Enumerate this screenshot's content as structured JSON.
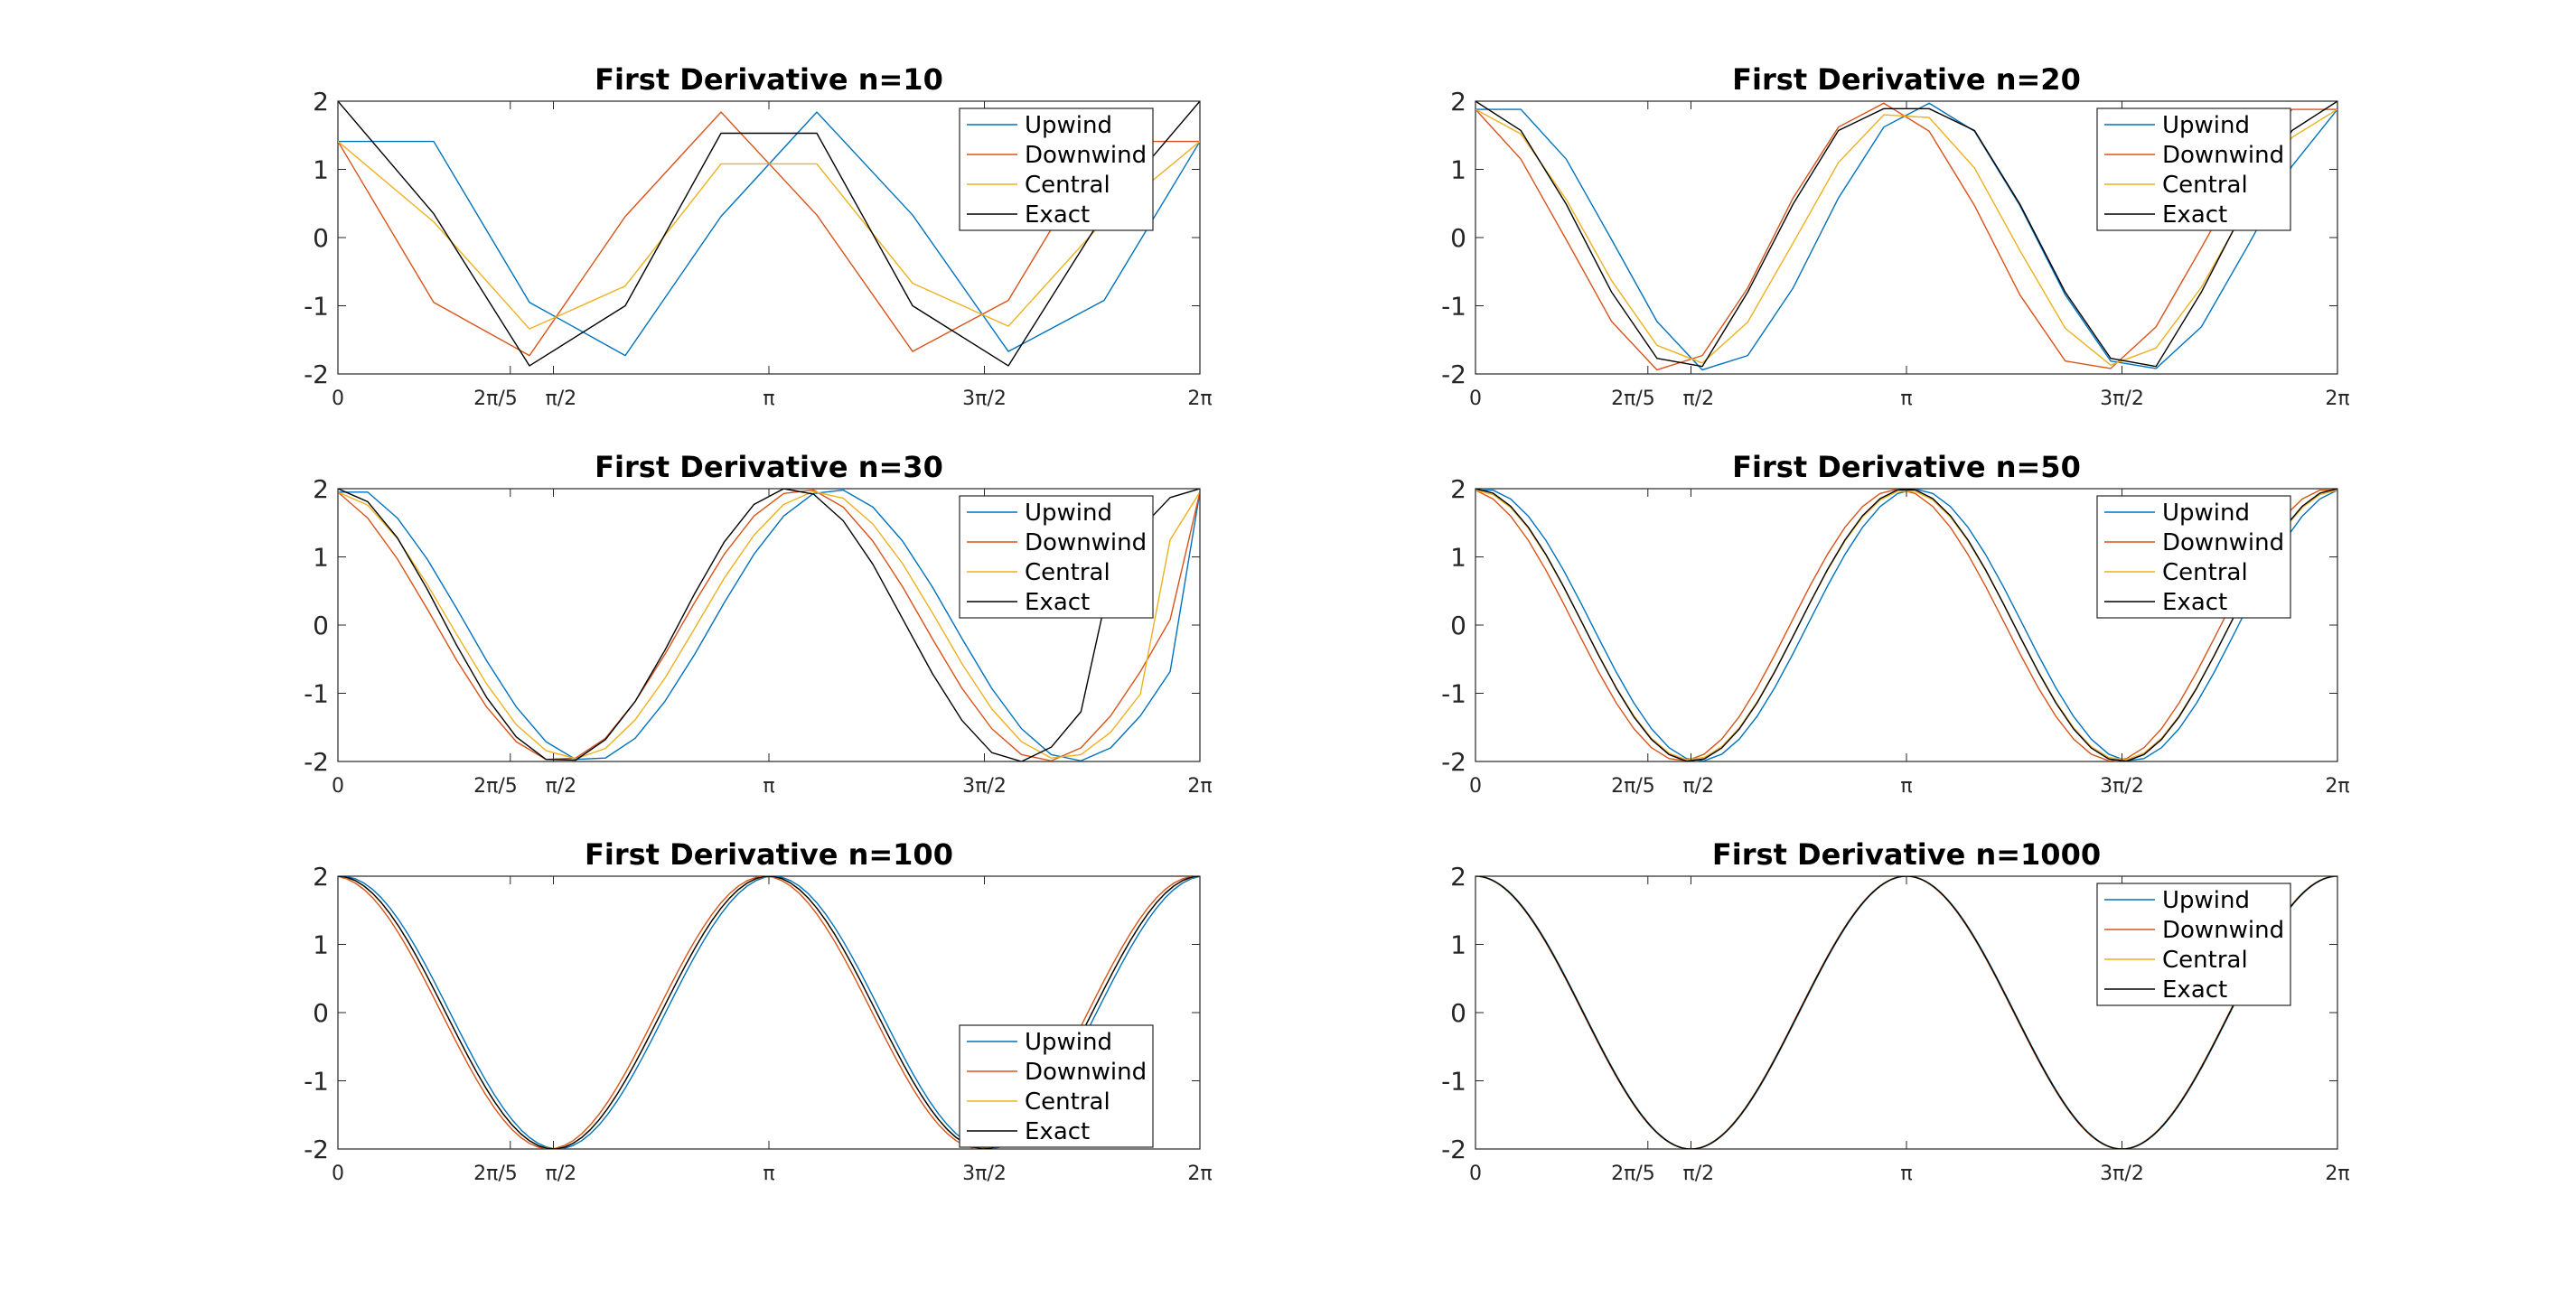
{
  "figure": {
    "background": "#ffffff",
    "axis_color": "#262626"
  },
  "chart_data": [
    {
      "type": "line",
      "title": "First Derivative n=10",
      "n": 10,
      "xlabel": "",
      "ylabel": "",
      "xlim": [
        0,
        6.2832
      ],
      "ylim": [
        -2,
        2
      ],
      "xticks": [
        0,
        1.2566,
        1.5708,
        3.1416,
        4.7124,
        6.2832
      ],
      "xticklabels": [
        "0",
        "2π/5",
        "π/2",
        "π",
        "3π/2",
        "2π"
      ],
      "yticks": [
        -2,
        -1,
        0,
        1,
        2
      ],
      "yticklabels": [
        "-2",
        "-1",
        "0",
        "1",
        "2"
      ],
      "legend": {
        "position": "top-right",
        "entries": [
          "Upwind",
          "Downwind",
          "Central",
          "Exact"
        ]
      },
      "series": [
        {
          "name": "Upwind",
          "color": "#0072BD",
          "x": [
            0,
            0.6981,
            1.3963,
            2.0944,
            2.7925,
            3.4907,
            4.1888,
            4.8869,
            5.5851,
            6.2832
          ],
          "y": [
            1.41,
            1.41,
            -0.95,
            -1.73,
            0.31,
            1.84,
            0.33,
            -1.67,
            -0.92,
            1.41
          ]
        },
        {
          "name": "Downwind",
          "color": "#D95319",
          "x": [
            0,
            0.6981,
            1.3963,
            2.0944,
            2.7925,
            3.4907,
            4.1888,
            4.8869,
            5.5851,
            6.2832
          ],
          "y": [
            1.41,
            -0.95,
            -1.73,
            0.31,
            1.84,
            0.33,
            -1.67,
            -0.92,
            1.41,
            1.41
          ]
        },
        {
          "name": "Central",
          "color": "#EDB120",
          "x": [
            0,
            0.6981,
            1.3963,
            2.0944,
            2.7925,
            3.4907,
            4.1888,
            4.8869,
            5.5851,
            6.2832
          ],
          "y": [
            1.41,
            0.23,
            -1.34,
            -0.71,
            1.08,
            1.08,
            -0.67,
            -1.3,
            0.25,
            1.41
          ]
        },
        {
          "name": "Exact",
          "color": "#000000",
          "x": [
            0,
            0.6981,
            1.3963,
            2.0944,
            2.7925,
            3.4907,
            4.1888,
            4.8869,
            5.5851,
            6.2832
          ],
          "y": [
            2.0,
            0.35,
            -1.88,
            -1.0,
            1.53,
            1.53,
            -1.0,
            -1.88,
            0.35,
            2.0
          ]
        }
      ]
    },
    {
      "type": "line",
      "title": "First Derivative n=20",
      "n": 20,
      "xlabel": "",
      "ylabel": "",
      "xlim": [
        0,
        6.2832
      ],
      "ylim": [
        -2,
        2
      ],
      "xticks": [
        0,
        1.2566,
        1.5708,
        3.1416,
        4.7124,
        6.2832
      ],
      "xticklabels": [
        "0",
        "2π/5",
        "π/2",
        "π",
        "3π/2",
        "2π"
      ],
      "yticks": [
        -2,
        -1,
        0,
        1,
        2
      ],
      "yticklabels": [
        "-2",
        "-1",
        "0",
        "1",
        "2"
      ],
      "legend": {
        "position": "top-right",
        "entries": [
          "Upwind",
          "Downwind",
          "Central",
          "Exact"
        ]
      },
      "series": [
        {
          "name": "Upwind",
          "color": "#0072BD",
          "x": [
            0,
            0.3307,
            0.6614,
            0.9921,
            1.3228,
            1.6535,
            1.9842,
            2.3149,
            2.6456,
            2.9762,
            3.3069,
            3.6376,
            3.9683,
            4.299,
            4.6297,
            4.9604,
            5.2911,
            5.6218,
            5.9525,
            6.2832
          ],
          "y": [
            1.88,
            1.88,
            1.15,
            -0.03,
            -1.23,
            -1.94,
            -1.73,
            -0.74,
            0.58,
            1.62,
            1.97,
            1.56,
            0.47,
            -0.84,
            -1.81,
            -1.92,
            -1.31,
            -0.15,
            1.05,
            1.88
          ]
        },
        {
          "name": "Downwind",
          "color": "#D95319",
          "x": [
            0,
            0.3307,
            0.6614,
            0.9921,
            1.3228,
            1.6535,
            1.9842,
            2.3149,
            2.6456,
            2.9762,
            3.3069,
            3.6376,
            3.9683,
            4.299,
            4.6297,
            4.9604,
            5.2911,
            5.6218,
            5.9525,
            6.2832
          ],
          "y": [
            1.88,
            1.15,
            -0.03,
            -1.23,
            -1.94,
            -1.73,
            -0.74,
            0.58,
            1.62,
            1.97,
            1.56,
            0.47,
            -0.84,
            -1.81,
            -1.92,
            -1.31,
            -0.15,
            1.05,
            1.88,
            1.88
          ]
        },
        {
          "name": "Central",
          "color": "#EDB120",
          "x": [
            0,
            0.3307,
            0.6614,
            0.9921,
            1.3228,
            1.6535,
            1.9842,
            2.3149,
            2.6456,
            2.9762,
            3.3069,
            3.6376,
            3.9683,
            4.299,
            4.6297,
            4.9604,
            5.2911,
            5.6218,
            5.9525,
            6.2832
          ],
          "y": [
            1.88,
            1.52,
            0.56,
            -0.63,
            -1.58,
            -1.84,
            -1.24,
            -0.08,
            1.1,
            1.8,
            1.76,
            1.02,
            -0.19,
            -1.33,
            -1.87,
            -1.62,
            -0.73,
            0.45,
            1.47,
            1.88
          ]
        },
        {
          "name": "Exact",
          "color": "#000000",
          "x": [
            0,
            0.3307,
            0.6614,
            0.9921,
            1.3228,
            1.6535,
            1.9842,
            2.3149,
            2.6456,
            2.9762,
            3.3069,
            3.6376,
            3.9683,
            4.299,
            4.6297,
            4.9604,
            5.2911,
            5.6218,
            5.9525,
            6.2832
          ],
          "y": [
            2.0,
            1.57,
            0.49,
            -0.8,
            -1.77,
            -1.89,
            -0.8,
            0.49,
            1.57,
            1.89,
            1.89,
            1.57,
            0.49,
            -0.8,
            -1.77,
            -1.89,
            -0.8,
            0.49,
            1.57,
            2.0
          ]
        }
      ]
    },
    {
      "type": "line",
      "title": "First Derivative n=30",
      "n": 30,
      "xlabel": "",
      "ylabel": "",
      "xlim": [
        0,
        6.2832
      ],
      "ylim": [
        -2,
        2
      ],
      "xticks": [
        0,
        1.2566,
        1.5708,
        3.1416,
        4.7124,
        6.2832
      ],
      "xticklabels": [
        "0",
        "2π/5",
        "π/2",
        "π",
        "3π/2",
        "2π"
      ],
      "yticks": [
        -2,
        -1,
        0,
        1,
        2
      ],
      "yticklabels": [
        "-2",
        "-1",
        "0",
        "1",
        "2"
      ],
      "legend": {
        "position": "top-right",
        "entries": [
          "Upwind",
          "Downwind",
          "Central",
          "Exact"
        ]
      },
      "series": [
        {
          "name": "Upwind",
          "color": "#0072BD",
          "x": [
            0,
            0.2167,
            0.4333,
            0.65,
            0.8666,
            1.0833,
            1.2999,
            1.5166,
            1.7332,
            1.9499,
            2.1666,
            2.3832,
            2.5999,
            2.8165,
            3.0332,
            3.2498,
            3.4665,
            3.6832,
            3.8998,
            4.1165,
            4.3331,
            4.5498,
            4.7664,
            4.9831,
            5.1998,
            5.4164,
            5.6331,
            5.8497,
            6.0664,
            6.2832
          ],
          "y": [
            1.95,
            1.95,
            1.57,
            0.97,
            0.24,
            -0.52,
            -1.2,
            -1.71,
            -1.97,
            -1.95,
            -1.66,
            -1.12,
            -0.43,
            0.33,
            1.04,
            1.6,
            1.93,
            1.98,
            1.73,
            1.23,
            0.56,
            -0.2,
            -0.93,
            -1.52,
            -1.9,
            -1.99,
            -1.8,
            -1.33,
            -0.68,
            1.95
          ]
        },
        {
          "name": "Downwind",
          "color": "#D95319",
          "x": [
            0,
            0.2167,
            0.4333,
            0.65,
            0.8666,
            1.0833,
            1.2999,
            1.5166,
            1.7332,
            1.9499,
            2.1666,
            2.3832,
            2.5999,
            2.8165,
            3.0332,
            3.2498,
            3.4665,
            3.6832,
            3.8998,
            4.1165,
            4.3331,
            4.5498,
            4.7664,
            4.9831,
            5.1998,
            5.4164,
            5.6331,
            5.8497,
            6.0664,
            6.2832
          ],
          "y": [
            1.95,
            1.57,
            0.97,
            0.24,
            -0.52,
            -1.2,
            -1.71,
            -1.97,
            -1.95,
            -1.66,
            -1.12,
            -0.43,
            0.33,
            1.04,
            1.6,
            1.93,
            1.98,
            1.73,
            1.23,
            0.56,
            -0.2,
            -0.93,
            -1.52,
            -1.9,
            -1.99,
            -1.8,
            -1.33,
            -0.68,
            0.08,
            1.95
          ]
        },
        {
          "name": "Central",
          "color": "#EDB120",
          "x": [
            0,
            0.2167,
            0.4333,
            0.65,
            0.8666,
            1.0833,
            1.2999,
            1.5166,
            1.7332,
            1.9499,
            2.1666,
            2.3832,
            2.5999,
            2.8165,
            3.0332,
            3.2498,
            3.4665,
            3.6832,
            3.8998,
            4.1165,
            4.3331,
            4.5498,
            4.7664,
            4.9831,
            5.1998,
            5.4164,
            5.6331,
            5.8497,
            6.0664,
            6.2832
          ],
          "y": [
            1.95,
            1.76,
            1.27,
            0.6,
            -0.14,
            -0.86,
            -1.46,
            -1.84,
            -1.96,
            -1.81,
            -1.39,
            -0.78,
            -0.05,
            0.69,
            1.32,
            1.77,
            1.96,
            1.86,
            1.48,
            0.9,
            0.18,
            -0.57,
            -1.23,
            -1.71,
            -1.95,
            -1.9,
            -1.57,
            -1.01,
            1.25,
            1.95
          ]
        },
        {
          "name": "Exact",
          "color": "#000000",
          "x": [
            0,
            0.2167,
            0.4333,
            0.65,
            0.8666,
            1.0833,
            1.2999,
            1.5166,
            1.7332,
            1.9499,
            2.1666,
            2.3832,
            2.5999,
            2.8165,
            3.0332,
            3.2498,
            3.4665,
            3.6832,
            3.8998,
            4.1165,
            4.3331,
            4.5498,
            4.7664,
            4.9831,
            5.1998,
            5.4164,
            5.6331,
            5.8497,
            6.0664,
            6.2832
          ],
          "y": [
            2.0,
            1.81,
            1.28,
            0.53,
            -0.3,
            -1.06,
            -1.64,
            -1.97,
            -1.98,
            -1.68,
            -1.12,
            -0.37,
            0.46,
            1.22,
            1.77,
            2.0,
            1.92,
            1.53,
            0.89,
            0.09,
            -0.71,
            -1.4,
            -1.87,
            -2.0,
            -1.79,
            -1.27,
            0.71,
            1.41,
            1.87,
            2.0
          ]
        }
      ]
    },
    {
      "type": "line",
      "title": "First Derivative n=50",
      "n": 50,
      "xlabel": "",
      "ylabel": "",
      "xlim": [
        0,
        6.2832
      ],
      "ylim": [
        -2,
        2
      ],
      "xticks": [
        0,
        1.2566,
        1.5708,
        3.1416,
        4.7124,
        6.2832
      ],
      "xticklabels": [
        "0",
        "2π/5",
        "π/2",
        "π",
        "3π/2",
        "2π"
      ],
      "yticks": [
        -2,
        -1,
        0,
        1,
        2
      ],
      "yticklabels": [
        "-2",
        "-1",
        "0",
        "1",
        "2"
      ],
      "legend": {
        "position": "top-right",
        "entries": [
          "Upwind",
          "Downwind",
          "Central",
          "Exact"
        ]
      },
      "generator": {
        "kind": "finite-difference",
        "function": "2cos(2x)",
        "points": 50
      },
      "series": [
        {
          "name": "Upwind",
          "color": "#0072BD"
        },
        {
          "name": "Downwind",
          "color": "#D95319"
        },
        {
          "name": "Central",
          "color": "#EDB120"
        },
        {
          "name": "Exact",
          "color": "#000000"
        }
      ]
    },
    {
      "type": "line",
      "title": "First Derivative n=100",
      "n": 100,
      "xlabel": "",
      "ylabel": "",
      "xlim": [
        0,
        6.2832
      ],
      "ylim": [
        -2,
        2
      ],
      "xticks": [
        0,
        1.2566,
        1.5708,
        3.1416,
        4.7124,
        6.2832
      ],
      "xticklabels": [
        "0",
        "2π/5",
        "π/2",
        "π",
        "3π/2",
        "2π"
      ],
      "yticks": [
        -2,
        -1,
        0,
        1,
        2
      ],
      "yticklabels": [
        "-2",
        "-1",
        "0",
        "1",
        "2"
      ],
      "legend": {
        "position": "bottom-right",
        "entries": [
          "Upwind",
          "Downwind",
          "Central",
          "Exact"
        ]
      },
      "generator": {
        "kind": "finite-difference",
        "function": "2cos(2x)",
        "points": 100
      },
      "series": [
        {
          "name": "Upwind",
          "color": "#0072BD"
        },
        {
          "name": "Downwind",
          "color": "#D95319"
        },
        {
          "name": "Central",
          "color": "#EDB120"
        },
        {
          "name": "Exact",
          "color": "#000000"
        }
      ]
    },
    {
      "type": "line",
      "title": "First Derivative n=1000",
      "n": 1000,
      "xlabel": "",
      "ylabel": "",
      "xlim": [
        0,
        6.2832
      ],
      "ylim": [
        -2,
        2
      ],
      "xticks": [
        0,
        1.2566,
        1.5708,
        3.1416,
        4.7124,
        6.2832
      ],
      "xticklabels": [
        "0",
        "2π/5",
        "π/2",
        "π",
        "3π/2",
        "2π"
      ],
      "yticks": [
        -2,
        -1,
        0,
        1,
        2
      ],
      "yticklabels": [
        "-2",
        "-1",
        "0",
        "1",
        "2"
      ],
      "legend": {
        "position": "top-right",
        "entries": [
          "Upwind",
          "Downwind",
          "Central",
          "Exact"
        ]
      },
      "generator": {
        "kind": "finite-difference",
        "function": "2cos(2x)",
        "points": 1000
      },
      "series": [
        {
          "name": "Upwind",
          "color": "#0072BD"
        },
        {
          "name": "Downwind",
          "color": "#D95319"
        },
        {
          "name": "Central",
          "color": "#EDB120"
        },
        {
          "name": "Exact",
          "color": "#000000"
        }
      ]
    }
  ]
}
